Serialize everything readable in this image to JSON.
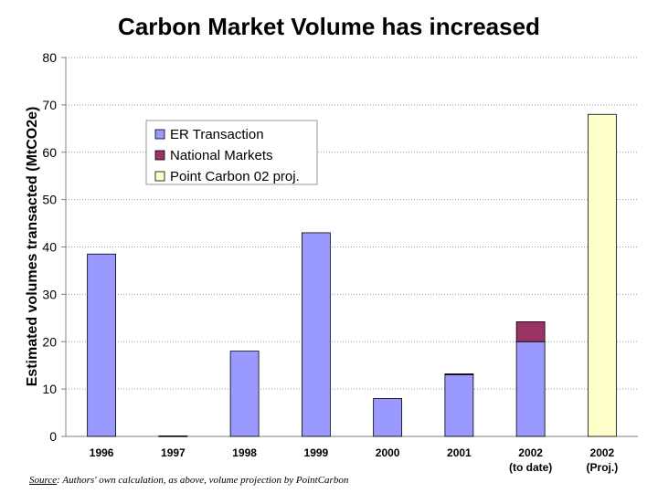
{
  "chart_data": {
    "type": "bar",
    "title": "Carbon Market Volume has increased",
    "ylabel": "Estimated volumes transacted (MtCO2e)",
    "xlabel": "",
    "ylim": [
      0,
      80
    ],
    "yticks": [
      0,
      10,
      20,
      30,
      40,
      50,
      60,
      70,
      80
    ],
    "grid": "horizontal dotted",
    "legend_position": "upper-left",
    "stacked": true,
    "categories": [
      [
        "1996"
      ],
      [
        "1997"
      ],
      [
        "1998"
      ],
      [
        "1999"
      ],
      [
        "2000"
      ],
      [
        "2001"
      ],
      [
        "2002",
        "(to date)"
      ],
      [
        "2002",
        "(Proj.)"
      ]
    ],
    "series": [
      {
        "name": "ER Transaction",
        "color": "#9999ff",
        "values": [
          38.5,
          0.1,
          18,
          43,
          8,
          13,
          20,
          0
        ]
      },
      {
        "name": "National Markets",
        "color": "#993366",
        "values": [
          0,
          0,
          0,
          0,
          0,
          0.2,
          4.2,
          0
        ]
      },
      {
        "name": "Point Carbon 02 proj.",
        "color": "#ffffcc",
        "values": [
          0,
          0,
          0,
          0,
          0,
          0,
          0,
          68
        ]
      }
    ]
  },
  "source": {
    "label": "Source",
    "text": ": Authors' own calculation, as above, volume projection by PointCarbon"
  }
}
